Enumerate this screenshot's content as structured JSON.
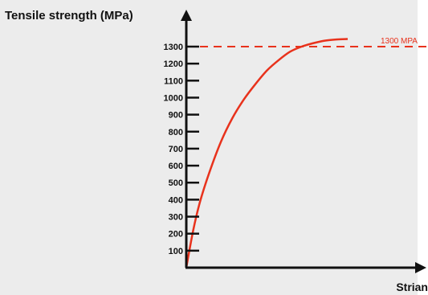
{
  "chart_data": {
    "type": "line",
    "ylabel": "Tensile strength (MPa)",
    "xlabel": "Strian",
    "yticks": [
      100,
      200,
      300,
      400,
      500,
      600,
      700,
      800,
      900,
      1000,
      1100,
      1200,
      1300
    ],
    "ylim": [
      0,
      1400
    ],
    "xlim": [
      0,
      1
    ],
    "series": [
      {
        "color": "#e8321c",
        "x": [
          0,
          0.03,
          0.06,
          0.1,
          0.15,
          0.2,
          0.25,
          0.3,
          0.35,
          0.4,
          0.45,
          0.5,
          0.55,
          0.6,
          0.65,
          0.7
        ],
        "y": [
          0,
          220,
          390,
          560,
          740,
          880,
          990,
          1080,
          1160,
          1220,
          1270,
          1300,
          1320,
          1335,
          1342,
          1345
        ]
      }
    ],
    "reference_line": {
      "value": 1300,
      "label": "1300 MPA",
      "color": "#e8321c",
      "style": "dashed"
    },
    "grid": false,
    "axis_color": "#111111"
  }
}
